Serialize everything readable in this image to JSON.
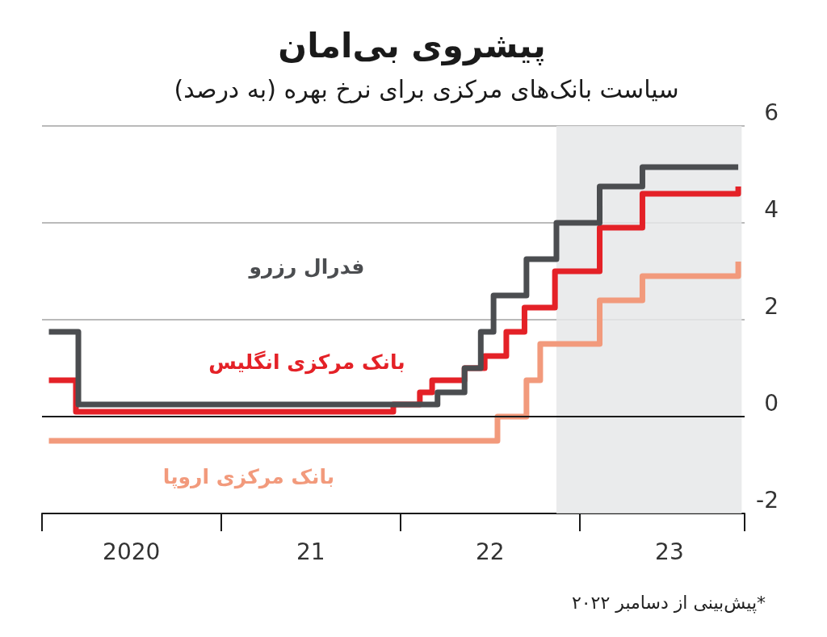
{
  "chart_data": {
    "type": "step",
    "title": "پیشروی بی‌امان",
    "subtitle": "سیاست بانک‌های مرکزی برای نرخ بهره (به درصد)",
    "annotations": [
      "*پیش‌بینی از دسامبر ۲۰۲۲"
    ],
    "series": [
      {
        "name": "فدرال رزرو",
        "color": "#4b4d50",
        "x": [
          "2020-01-15",
          "2020-03-15",
          "2022-03-16",
          "2022-05-10",
          "2022-06-12",
          "2022-07-08",
          "2022-09-13",
          "2022-11-13",
          "2023-02-09",
          "2023-05-07",
          "2023-11-18"
        ],
        "values": [
          1.75,
          0.25,
          0.5,
          1.0,
          1.75,
          2.5,
          3.25,
          4.0,
          4.75,
          5.15,
          5.15
        ]
      },
      {
        "name": "بانک مرکزی انگلیس",
        "color": "#e42127",
        "x": [
          "2020-01-15",
          "2020-03-10",
          "2021-12-16",
          "2022-02-08",
          "2022-03-05",
          "2022-05-10",
          "2022-06-20",
          "2022-08-03",
          "2022-09-09",
          "2022-11-10",
          "2023-02-09",
          "2023-05-07",
          "2023-11-18"
        ],
        "values": [
          0.75,
          0.1,
          0.25,
          0.5,
          0.75,
          1.0,
          1.25,
          1.75,
          2.25,
          3.0,
          3.9,
          4.6,
          4.75
        ]
      },
      {
        "name": "بانک مرکزی اروپا",
        "color": "#f29a7c",
        "x": [
          "2020-01-15",
          "2022-07-16",
          "2022-09-13",
          "2022-10-11",
          "2023-02-09",
          "2023-05-07",
          "2023-11-18"
        ],
        "values": [
          -0.5,
          0,
          0.75,
          1.5,
          2.4,
          2.9,
          3.2
        ]
      }
    ],
    "xlim": [
      "2020-01-01",
      "2023-12-01"
    ],
    "xticks": [
      {
        "value": "2020-07-01",
        "label": "2020"
      },
      {
        "value": "2021-07-01",
        "label": "21"
      },
      {
        "value": "2022-07-01",
        "label": "22"
      },
      {
        "value": "2023-07-01",
        "label": "23"
      }
    ],
    "ylim": [
      -2,
      6
    ],
    "yticks": [
      -2,
      0,
      2,
      4,
      6
    ],
    "grid": "y",
    "marker": "none",
    "ref_lines": [
      {
        "axis": "y",
        "value": 0,
        "color": "#1a1a1a"
      }
    ],
    "bands": [
      {
        "axis": "x",
        "from": "2022-11-13",
        "to": "2023-11-25",
        "color": "#e6e7e9"
      }
    ]
  }
}
